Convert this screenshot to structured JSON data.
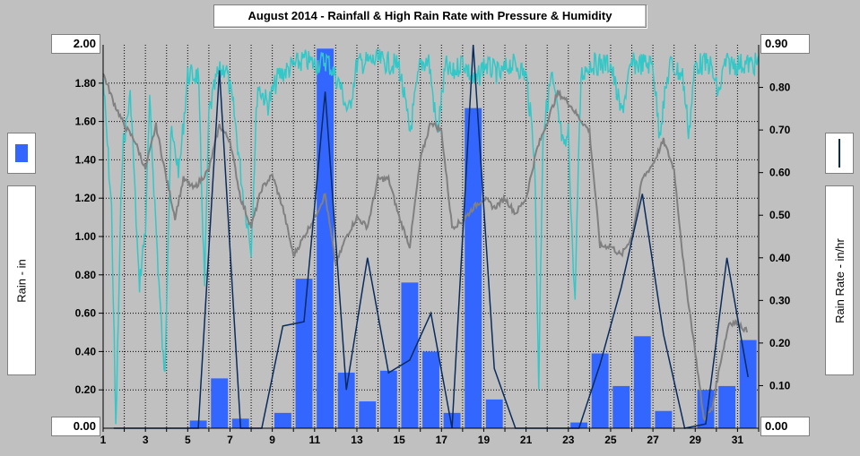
{
  "chart_data": {
    "type": "bar",
    "title": "August 2014 - Rainfall & High Rain Rate with Pressure & Humidity",
    "ylabel": "Rain - in",
    "y2label": "Rain Rate - in/hr",
    "ylim": [
      0,
      2.0
    ],
    "y2lim": [
      0,
      0.9
    ],
    "y_ticks": [
      "0.00",
      "0.20",
      "0.40",
      "0.60",
      "0.80",
      "1.00",
      "1.20",
      "1.40",
      "1.60",
      "1.80",
      "2.00"
    ],
    "y2_ticks": [
      "0.00",
      "0.10",
      "0.20",
      "0.30",
      "0.40",
      "0.50",
      "0.60",
      "0.70",
      "0.80",
      "0.90"
    ],
    "x_ticks": [
      "1",
      "3",
      "5",
      "7",
      "9",
      "11",
      "13",
      "15",
      "17",
      "19",
      "21",
      "23",
      "25",
      "27",
      "29",
      "31"
    ],
    "ymax_label": "2.00",
    "ymin_label": "0.00",
    "y2max_label": "0.90",
    "y2min_label": "0.00",
    "days": [
      1,
      2,
      3,
      4,
      5,
      6,
      7,
      8,
      9,
      10,
      11,
      12,
      13,
      14,
      15,
      16,
      17,
      18,
      19,
      20,
      21,
      22,
      23,
      24,
      25,
      26,
      27,
      28,
      29,
      30,
      31
    ],
    "rain": [
      0,
      0,
      0,
      0,
      0.04,
      0.26,
      0.05,
      0,
      0.08,
      0.78,
      1.98,
      0.29,
      0.14,
      0.3,
      0.76,
      0.4,
      0.08,
      1.67,
      0.15,
      0,
      0,
      0,
      0.03,
      0.39,
      0.22,
      0.48,
      0.09,
      0,
      0.2,
      0.22,
      0.46
    ],
    "rain_rate": [
      0,
      0,
      0,
      0,
      0,
      0.84,
      0,
      0,
      0.24,
      0.25,
      0.79,
      0.09,
      0.4,
      0.13,
      0.16,
      0.27,
      0,
      0.9,
      0.14,
      0,
      0,
      0,
      0,
      0.15,
      0.33,
      0.55,
      0.22,
      0,
      0.01,
      0.4,
      0.12
    ],
    "colors": {
      "rain": "#3366ff",
      "rain_rate": "#0a2b5e",
      "humidity": "#33c8c8",
      "pressure": "#808080",
      "plot_bg": "#c0c0c0",
      "grid": "#000000"
    }
  },
  "legend": {
    "rain_swatch": "rain",
    "rate_swatch": "rain-rate"
  }
}
